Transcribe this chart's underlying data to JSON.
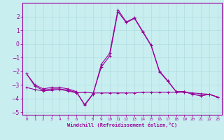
{
  "xlabel": "Windchill (Refroidissement éolien,°C)",
  "xlim": [
    -0.5,
    23.5
  ],
  "ylim": [
    -5.2,
    3.0
  ],
  "yticks": [
    -5,
    -4,
    -3,
    -2,
    -1,
    0,
    1,
    2
  ],
  "xticks": [
    0,
    1,
    2,
    3,
    4,
    5,
    6,
    7,
    8,
    9,
    10,
    11,
    12,
    13,
    14,
    15,
    16,
    17,
    18,
    19,
    20,
    21,
    22,
    23
  ],
  "background_color": "#c8eef0",
  "line_color": "#990099",
  "grid_color": "#b0dde0",
  "series1_x": [
    0,
    1,
    2,
    3,
    4,
    5,
    6,
    7,
    8,
    9,
    10,
    11,
    12,
    13,
    14,
    15,
    16,
    17,
    18,
    19,
    20,
    21,
    22,
    23
  ],
  "series1_y": [
    -2.2,
    -3.0,
    -3.3,
    -3.2,
    -3.2,
    -3.3,
    -3.5,
    -4.5,
    -3.7,
    -1.5,
    -0.7,
    2.5,
    1.6,
    1.9,
    0.9,
    -0.1,
    -2.0,
    -2.7,
    -3.5,
    -3.5,
    -3.7,
    -3.8,
    -3.7,
    -3.9
  ],
  "series2_x": [
    0,
    1,
    2,
    3,
    4,
    5,
    6,
    7,
    8,
    9,
    10,
    11,
    12,
    13,
    14,
    15,
    16,
    17,
    18,
    19,
    20,
    21,
    22,
    23
  ],
  "series2_y": [
    -2.2,
    -3.1,
    -3.4,
    -3.3,
    -3.3,
    -3.4,
    -3.55,
    -4.45,
    -3.65,
    -1.7,
    -0.9,
    2.35,
    1.55,
    1.85,
    0.85,
    -0.15,
    -2.05,
    -2.75,
    -3.5,
    -3.5,
    -3.7,
    -3.8,
    -3.7,
    -3.9
  ],
  "series3_x": [
    0,
    1,
    2,
    3,
    4,
    5,
    6,
    7,
    8,
    9,
    10,
    11,
    12,
    13,
    14,
    15,
    16,
    17,
    18,
    19,
    20,
    21,
    22,
    23
  ],
  "series3_y": [
    -3.2,
    -3.35,
    -3.45,
    -3.4,
    -3.35,
    -3.45,
    -3.6,
    -3.55,
    -3.6,
    -3.6,
    -3.6,
    -3.6,
    -3.6,
    -3.6,
    -3.55,
    -3.55,
    -3.55,
    -3.55,
    -3.55,
    -3.55,
    -3.6,
    -3.65,
    -3.7,
    -3.9
  ]
}
